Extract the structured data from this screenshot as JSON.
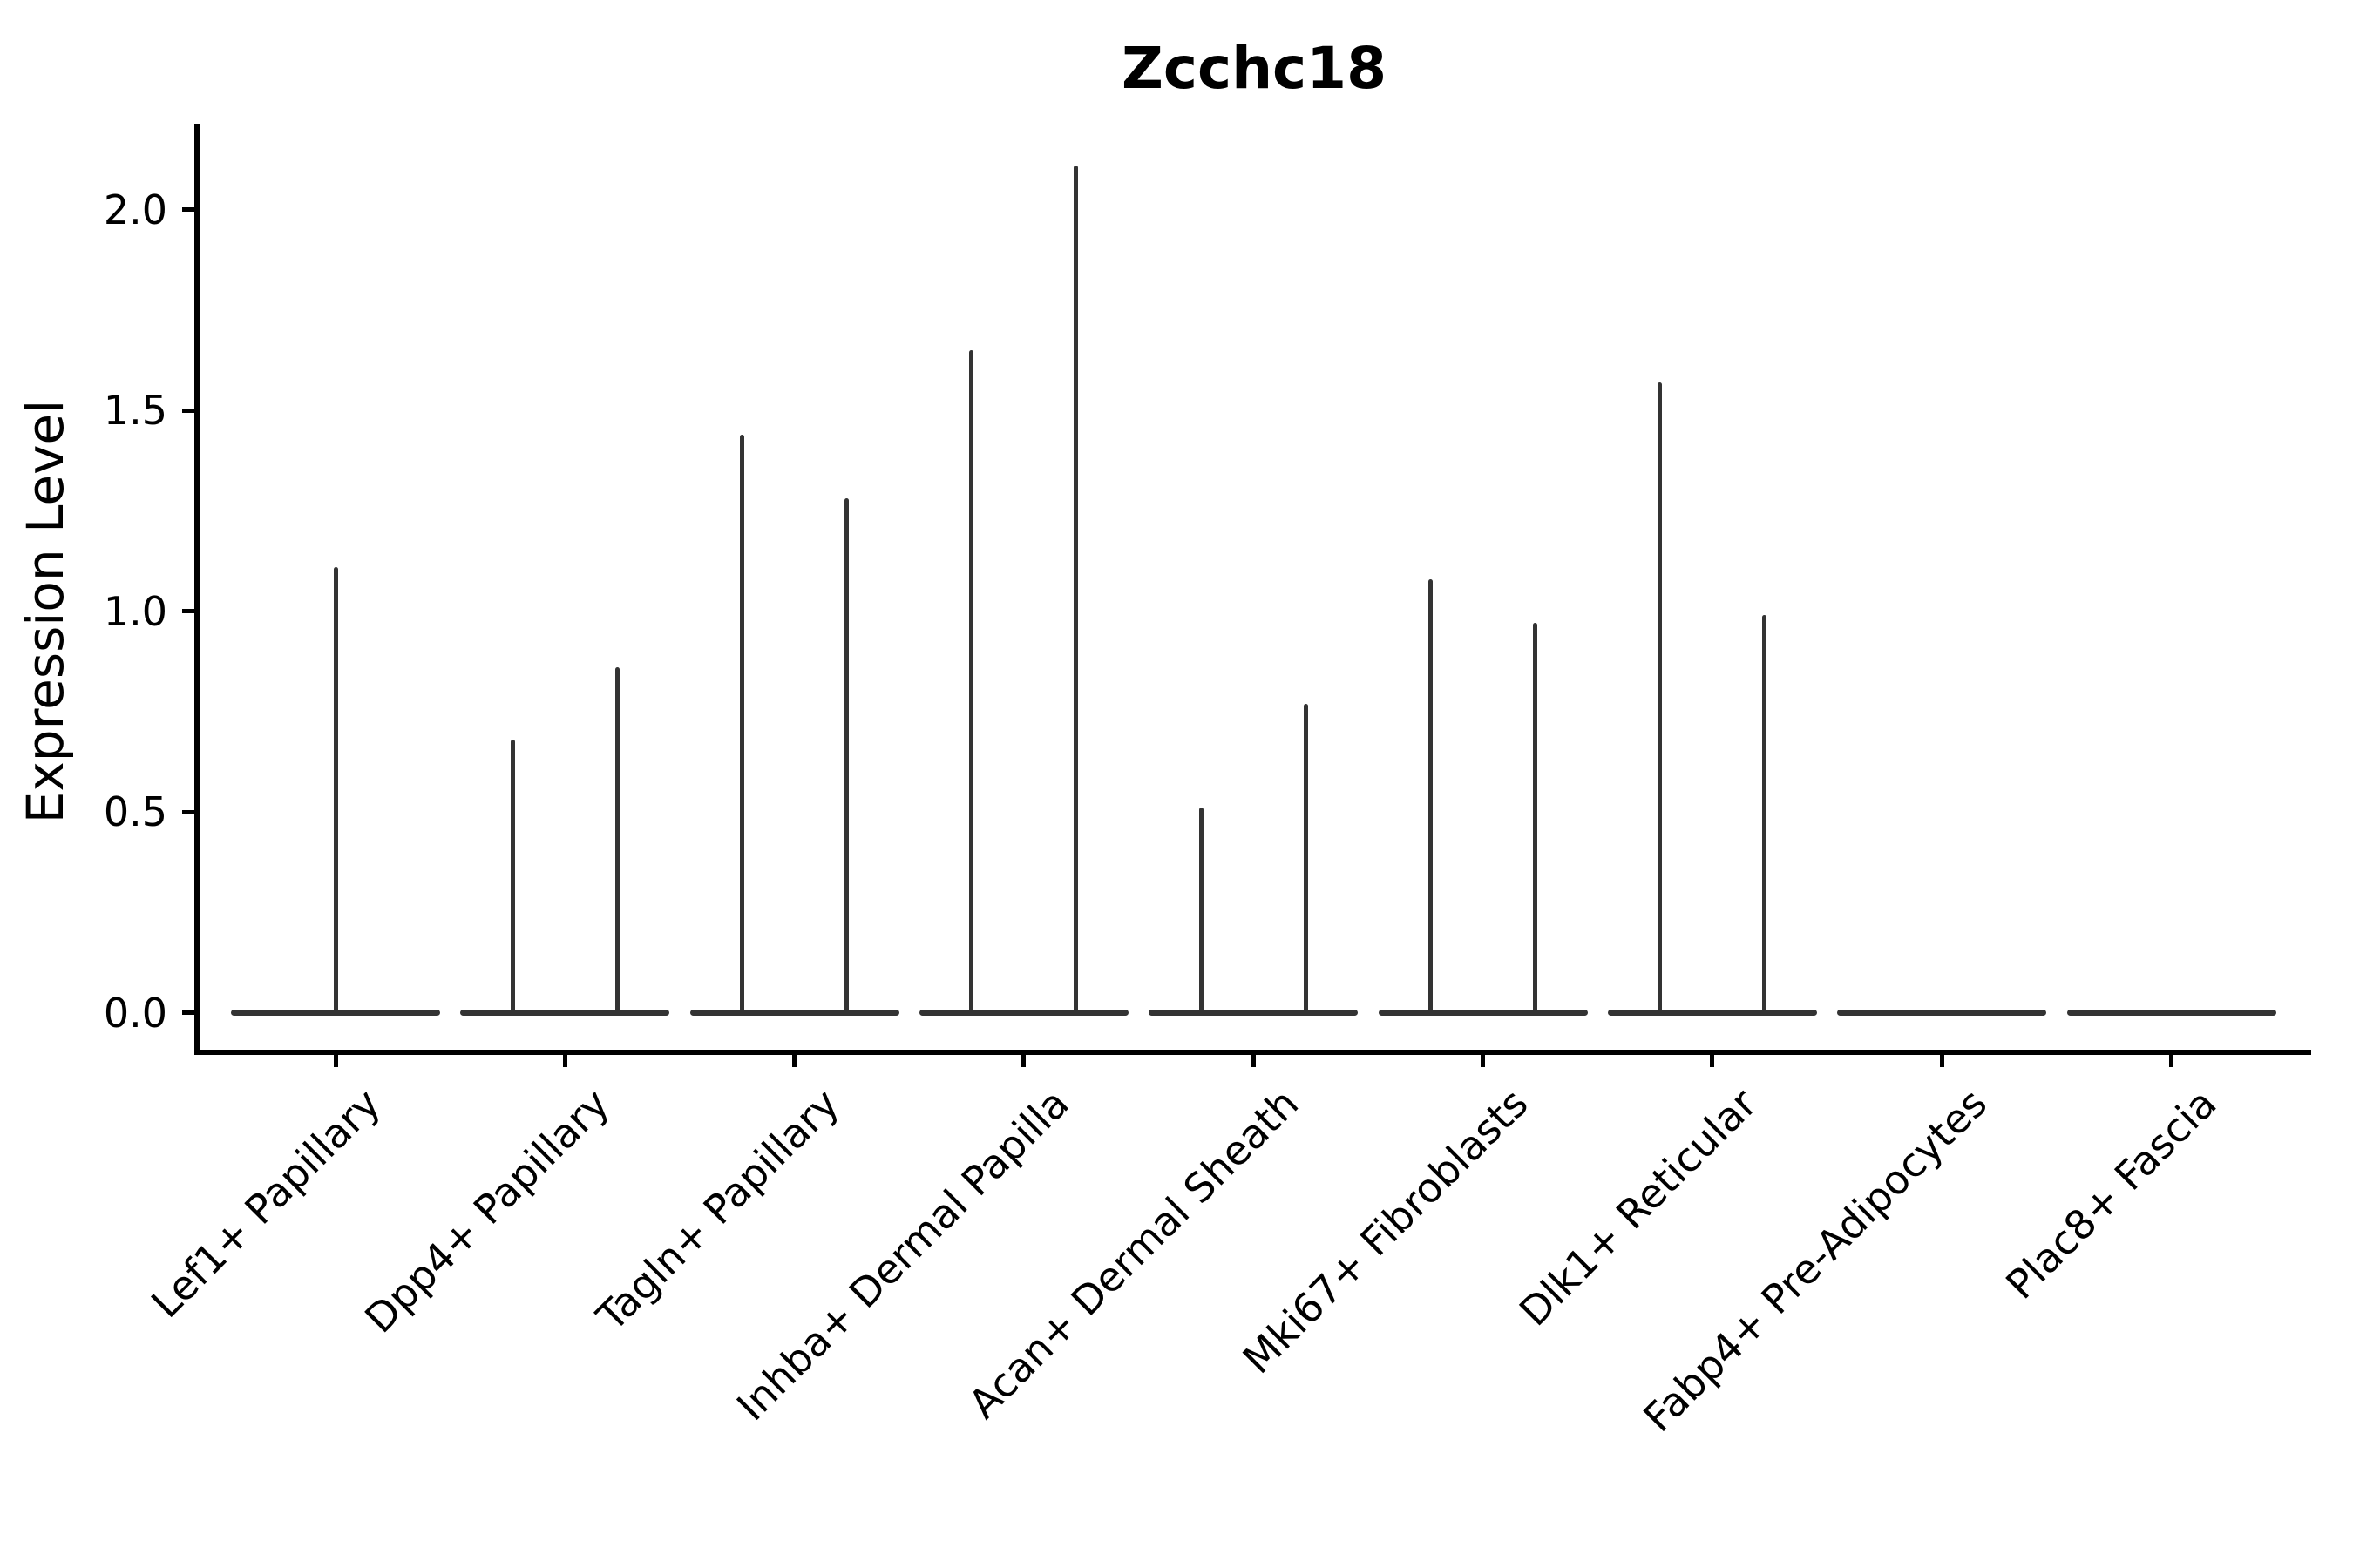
{
  "title": "Zcchc18",
  "chart_data": {
    "type": "violin",
    "title": "Zcchc18",
    "ylabel": "Expression Level",
    "xlabel": "",
    "ylim": [
      0,
      2.2
    ],
    "yticks": [
      0.0,
      0.5,
      1.0,
      1.5,
      2.0
    ],
    "ytick_labels": [
      "0.0",
      "0.5",
      "1.0",
      "1.5",
      "2.0"
    ],
    "grid": false,
    "legend": "none",
    "background_color": "#ffffff",
    "axis_color": "#000000",
    "violin_color": "#333333",
    "violins": [
      {
        "category": "Lef1+ Papillary",
        "maxima": [
          1.11
        ]
      },
      {
        "category": "Dpp4+ Papillary",
        "maxima": [
          0.68,
          0.86
        ]
      },
      {
        "category": "Tagln+ Papillary",
        "maxima": [
          1.44,
          1.28
        ]
      },
      {
        "category": "Inhba+ Dermal Papilla",
        "maxima": [
          1.65,
          2.11
        ]
      },
      {
        "category": "Acan+ Dermal Sheath",
        "maxima": [
          0.51,
          0.77
        ]
      },
      {
        "category": "Mki67+ Fibroblasts",
        "maxima": [
          1.08,
          0.97
        ]
      },
      {
        "category": "Dlk1+ Reticular",
        "maxima": [
          1.57,
          0.99
        ]
      },
      {
        "category": "Fabp4+ Pre-Adipocytes",
        "maxima": []
      },
      {
        "category": "Plac8+ Fascia",
        "maxima": []
      }
    ]
  }
}
